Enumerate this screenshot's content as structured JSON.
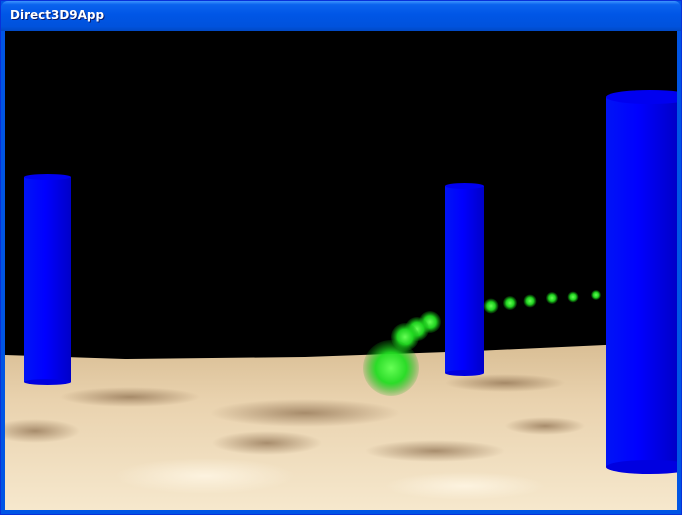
{
  "window": {
    "title": "Direct3D9App",
    "frame_color": "#0055e5"
  },
  "scene": {
    "background": "#000000",
    "pillar_color": "#0000ff",
    "particle_color": "#22dd22",
    "ground_color": "#e8cfaa"
  }
}
